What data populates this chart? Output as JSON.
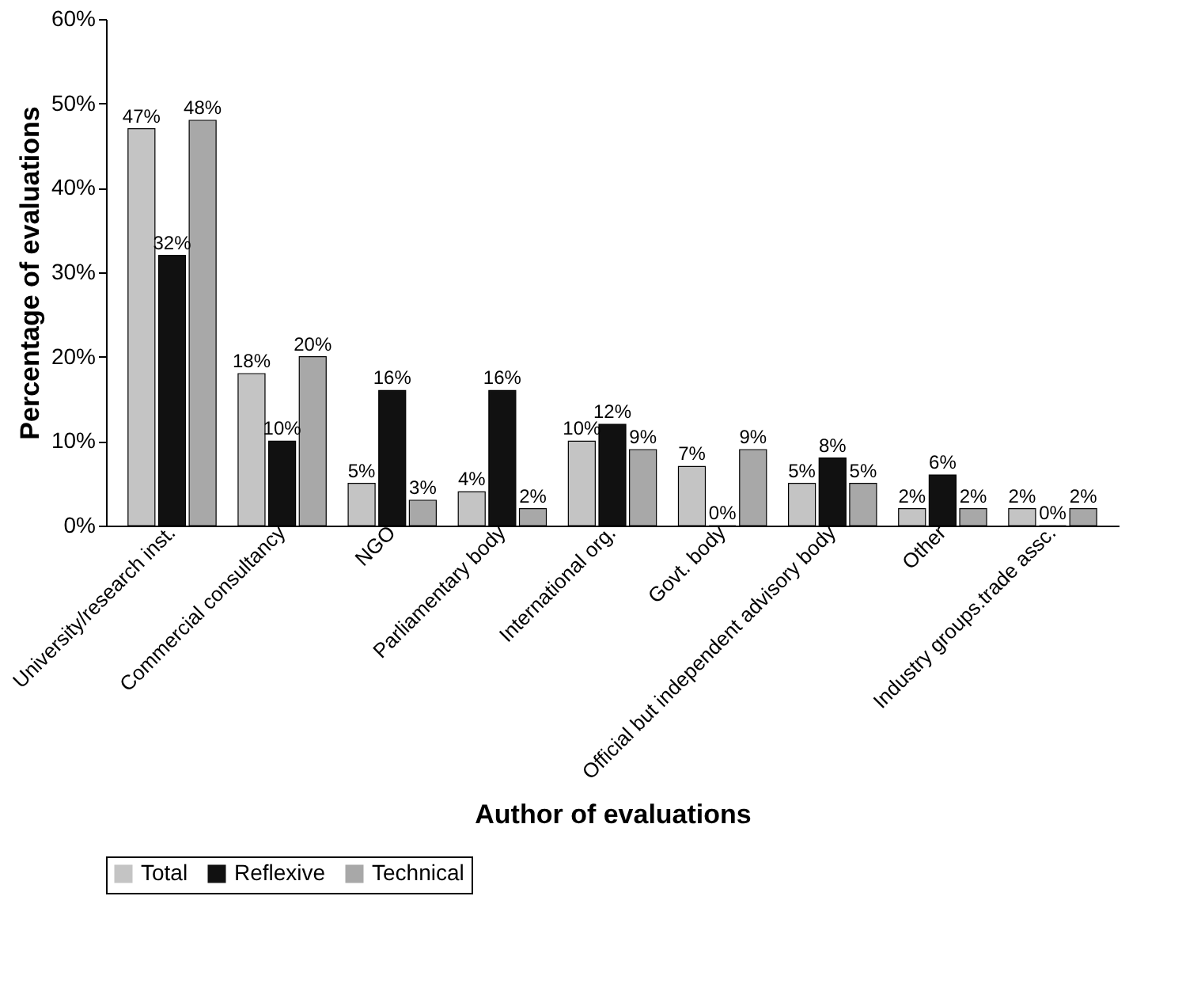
{
  "chart_data": {
    "type": "bar",
    "xlabel": "Author of evaluations",
    "ylabel": "Percentage of evaluations",
    "categories": [
      "University/research inst.",
      "Commercial consultancy",
      "NGO",
      "Parliamentary body",
      "International org.",
      "Govt. body",
      "Official but independent advisory body",
      "Other",
      "Industry groups.trade assc."
    ],
    "series": [
      {
        "name": "Total",
        "color": "#c4c4c4",
        "values": [
          47,
          18,
          5,
          4,
          10,
          7,
          5,
          2,
          2
        ],
        "value_labels": [
          "47%",
          "18%",
          "5%",
          "4%",
          "10%",
          "7%",
          "5%",
          "2%",
          "2%"
        ]
      },
      {
        "name": "Reflexive",
        "color": "#111111",
        "values": [
          32,
          10,
          16,
          16,
          12,
          0,
          8,
          6,
          0
        ],
        "value_labels": [
          "32%",
          "10%",
          "16%",
          "16%",
          "12%",
          "0%",
          "8%",
          "6%",
          "0%"
        ]
      },
      {
        "name": "Technical",
        "color": "#a8a8a8",
        "values": [
          48,
          20,
          3,
          2,
          9,
          9,
          5,
          2,
          2
        ],
        "value_labels": [
          "48%",
          "20%",
          "3%",
          "2%",
          "9%",
          "9%",
          "5%",
          "2%",
          "2%"
        ]
      }
    ],
    "ylim": [
      0,
      60
    ],
    "yticks": [
      {
        "value": 0,
        "label": "0%"
      },
      {
        "value": 10,
        "label": "10%"
      },
      {
        "value": 20,
        "label": "20%"
      },
      {
        "value": 30,
        "label": "30%"
      },
      {
        "value": 40,
        "label": "40%"
      },
      {
        "value": 50,
        "label": "50%"
      },
      {
        "value": 60,
        "label": "60%"
      }
    ],
    "grid": false,
    "legend": "bottom"
  }
}
